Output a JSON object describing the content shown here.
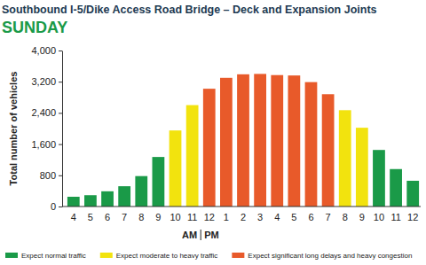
{
  "chart_data": {
    "type": "bar",
    "title": "Southbound I-5/Dike Access Road Bridge – Deck and Expansion Joints",
    "subtitle": "SUNDAY",
    "y_label": "Total number of vehicles",
    "categories": [
      "4",
      "5",
      "6",
      "7",
      "8",
      "9",
      "10",
      "11",
      "12",
      "1",
      "2",
      "3",
      "4",
      "5",
      "6",
      "7",
      "8",
      "9",
      "10",
      "11",
      "12"
    ],
    "series": [
      {
        "name": "Expect normal traffic",
        "color": "#1a9a48",
        "values": [
          250,
          290,
          390,
          520,
          780,
          1270,
          null,
          null,
          null,
          null,
          null,
          null,
          null,
          null,
          null,
          null,
          null,
          null,
          1450,
          960,
          660
        ]
      },
      {
        "name": "Expect moderate to heavy traffic",
        "color": "#f2e30e",
        "values": [
          null,
          null,
          null,
          null,
          null,
          null,
          1950,
          2600,
          null,
          null,
          null,
          null,
          null,
          null,
          null,
          null,
          2470,
          2020,
          null,
          null,
          null
        ]
      },
      {
        "name": "Expect significant long delays and heavy congestion",
        "color": "#e85a2a",
        "values": [
          null,
          null,
          null,
          null,
          null,
          null,
          null,
          null,
          3020,
          3300,
          3390,
          3400,
          3370,
          3360,
          3190,
          2880,
          null,
          null,
          null,
          null,
          null
        ]
      }
    ],
    "annotations": [
      "AM",
      "PM"
    ],
    "ylim": [
      0,
      4000
    ],
    "yticks": [
      0,
      800,
      {
        "value": 1600,
        "label": "1,600"
      },
      {
        "value": 2400,
        "label": "2,400"
      },
      {
        "value": 3200,
        "label": "3,200"
      },
      {
        "value": 4000,
        "label": "4,000"
      }
    ],
    "grid": false,
    "legend": "bottom-left"
  }
}
